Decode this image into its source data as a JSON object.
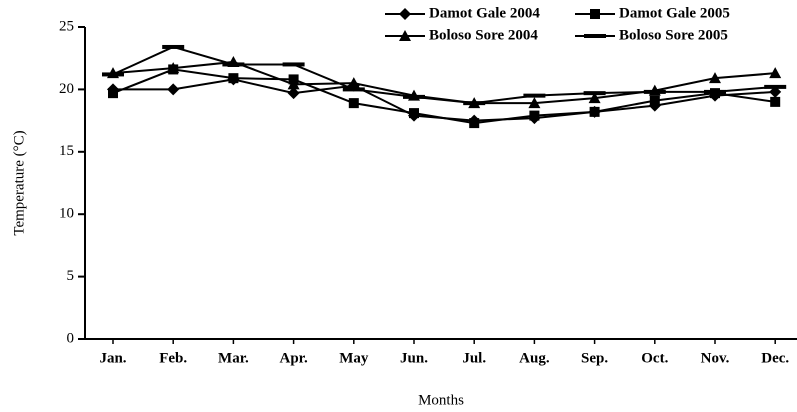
{
  "chart_data": {
    "type": "line",
    "y_label": "Temperature (°C)",
    "x_label": "Months",
    "categories": [
      "Jan.",
      "Feb.",
      "Mar.",
      "Apr.",
      "May",
      "Jun.",
      "Jul.",
      "Aug.",
      "Sep.",
      "Oct.",
      "Nov.",
      "Dec."
    ],
    "series": [
      {
        "name": "Damot Gale 2004",
        "color": "#000000",
        "marker": "diamond",
        "values": [
          20.0,
          20.0,
          20.8,
          19.7,
          20.3,
          17.9,
          17.5,
          17.7,
          18.2,
          18.7,
          19.5,
          19.8
        ]
      },
      {
        "name": "Damot Gale 2005",
        "color": "#000000",
        "marker": "square",
        "values": [
          19.7,
          21.6,
          20.9,
          20.8,
          18.9,
          18.1,
          17.3,
          17.9,
          18.2,
          19.1,
          19.7,
          19.0
        ]
      },
      {
        "name": "Boloso Sore 2004",
        "color": "#000000",
        "marker": "triangle",
        "values": [
          21.3,
          21.7,
          22.2,
          20.4,
          20.5,
          19.5,
          18.9,
          18.9,
          19.3,
          19.9,
          20.9,
          21.3
        ]
      },
      {
        "name": "Boloso Sore 2005",
        "color": "#000000",
        "marker": "dash",
        "values": [
          21.2,
          23.4,
          22.0,
          22.0,
          20.0,
          19.4,
          18.9,
          19.5,
          19.7,
          19.8,
          19.8,
          20.2
        ]
      }
    ],
    "ylim": [
      0,
      25
    ],
    "yticks": [
      0,
      5,
      10,
      15,
      20,
      25
    ],
    "grid": false
  }
}
